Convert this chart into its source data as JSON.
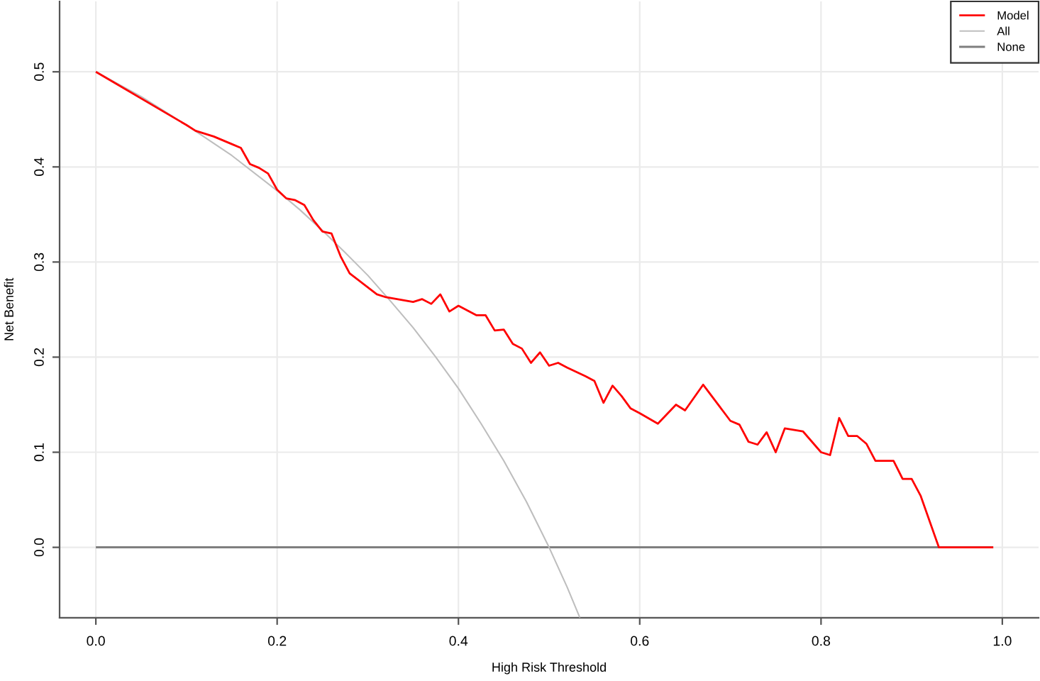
{
  "chart_data": {
    "type": "line",
    "xlabel": "High Risk Threshold",
    "ylabel": "Net Benefit",
    "xlim": [
      -0.04,
      1.04
    ],
    "ylim": [
      -0.074,
      0.574
    ],
    "xticks": [
      {
        "value": 0,
        "label": "0.0"
      },
      0.2,
      0.4,
      0.6,
      0.8,
      {
        "value": 1,
        "label": "1.0"
      }
    ],
    "yticks": [
      {
        "value": 0,
        "label": "0.0"
      },
      0.1,
      0.2,
      0.3,
      0.4,
      0.5
    ],
    "grid": true,
    "legend": "top right",
    "series": [
      {
        "name": "Model",
        "color": "#ff0000",
        "x": [
          0,
          0.1,
          0.11,
          0.13,
          0.15,
          0.16,
          0.17,
          0.18,
          0.19,
          0.2,
          0.21,
          0.22,
          0.23,
          0.24,
          0.25,
          0.26,
          0.27,
          0.28,
          0.31,
          0.32,
          0.35,
          0.36,
          0.37,
          0.38,
          0.39,
          0.4,
          0.42,
          0.43,
          0.44,
          0.45,
          0.46,
          0.47,
          0.48,
          0.49,
          0.5,
          0.51,
          0.52,
          0.54,
          0.55,
          0.56,
          0.57,
          0.58,
          0.59,
          0.6,
          0.62,
          0.64,
          0.65,
          0.67,
          0.7,
          0.71,
          0.72,
          0.73,
          0.74,
          0.75,
          0.76,
          0.78,
          0.8,
          0.81,
          0.82,
          0.83,
          0.84,
          0.85,
          0.86,
          0.88,
          0.89,
          0.9,
          0.91,
          0.93,
          0.99
        ],
        "values": [
          0.5,
          0.444,
          0.438,
          0.432,
          0.424,
          0.42,
          0.403,
          0.399,
          0.393,
          0.376,
          0.367,
          0.365,
          0.36,
          0.344,
          0.332,
          0.33,
          0.306,
          0.288,
          0.266,
          0.263,
          0.258,
          0.261,
          0.256,
          0.266,
          0.248,
          0.254,
          0.244,
          0.244,
          0.228,
          0.229,
          0.214,
          0.209,
          0.194,
          0.205,
          0.191,
          0.194,
          0.189,
          0.18,
          0.175,
          0.152,
          0.17,
          0.159,
          0.146,
          0.141,
          0.13,
          0.15,
          0.144,
          0.171,
          0.133,
          0.129,
          0.111,
          0.108,
          0.121,
          0.1,
          0.125,
          0.122,
          0.1,
          0.097,
          0.136,
          0.117,
          0.117,
          0.109,
          0.091,
          0.091,
          0.072,
          0.072,
          0.054,
          0.0,
          0.0
        ]
      },
      {
        "name": "All",
        "color": "#bebebe",
        "x": [
          0,
          0.05,
          0.1,
          0.15,
          0.2,
          0.225,
          0.25,
          0.275,
          0.3,
          0.325,
          0.35,
          0.375,
          0.4,
          0.425,
          0.45,
          0.475,
          0.5,
          0.52,
          0.534
        ],
        "values": [
          0.5,
          0.474,
          0.444,
          0.412,
          0.375,
          0.355,
          0.333,
          0.31,
          0.286,
          0.259,
          0.231,
          0.2,
          0.167,
          0.13,
          0.091,
          0.048,
          0.0,
          -0.042,
          -0.074
        ]
      },
      {
        "name": "None",
        "color": "#7f7f7f",
        "x": [
          0,
          0.99
        ],
        "values": [
          0.0,
          0.0
        ]
      }
    ]
  }
}
